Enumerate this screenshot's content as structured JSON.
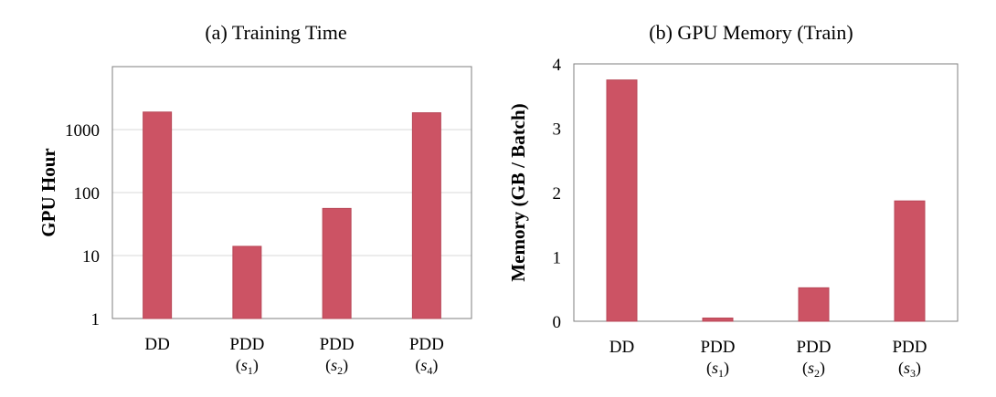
{
  "chart_data": [
    {
      "type": "bar",
      "title": "(a) Training Time",
      "ylabel": "GPU Hour",
      "xlabel": "",
      "yscale": "log",
      "ylim": [
        1,
        10000
      ],
      "yticks": [
        "1",
        "10",
        "100",
        "1000"
      ],
      "grid": true,
      "bar_color": "#cc5364",
      "categories": [
        {
          "label": "DD",
          "sub": "",
          "sub_index": ""
        },
        {
          "label": "PDD",
          "sub": "s",
          "sub_index": "1"
        },
        {
          "label": "PDD",
          "sub": "s",
          "sub_index": "2"
        },
        {
          "label": "PDD",
          "sub": "s",
          "sub_index": "4"
        }
      ],
      "values": [
        1900,
        14,
        56,
        1850
      ]
    },
    {
      "type": "bar",
      "title": "(b) GPU Memory (Train)",
      "ylabel": "Memory (GB / Batch)",
      "xlabel": "",
      "yscale": "linear",
      "ylim": [
        0,
        4
      ],
      "yticks": [
        "0",
        "1",
        "2",
        "3",
        "4"
      ],
      "grid": false,
      "bar_color": "#cc5364",
      "categories": [
        {
          "label": "DD",
          "sub": "",
          "sub_index": ""
        },
        {
          "label": "PDD",
          "sub": "s",
          "sub_index": "1"
        },
        {
          "label": "PDD",
          "sub": "s",
          "sub_index": "2"
        },
        {
          "label": "PDD",
          "sub": "s",
          "sub_index": "3"
        }
      ],
      "values": [
        3.75,
        0.05,
        0.52,
        1.87
      ]
    }
  ]
}
